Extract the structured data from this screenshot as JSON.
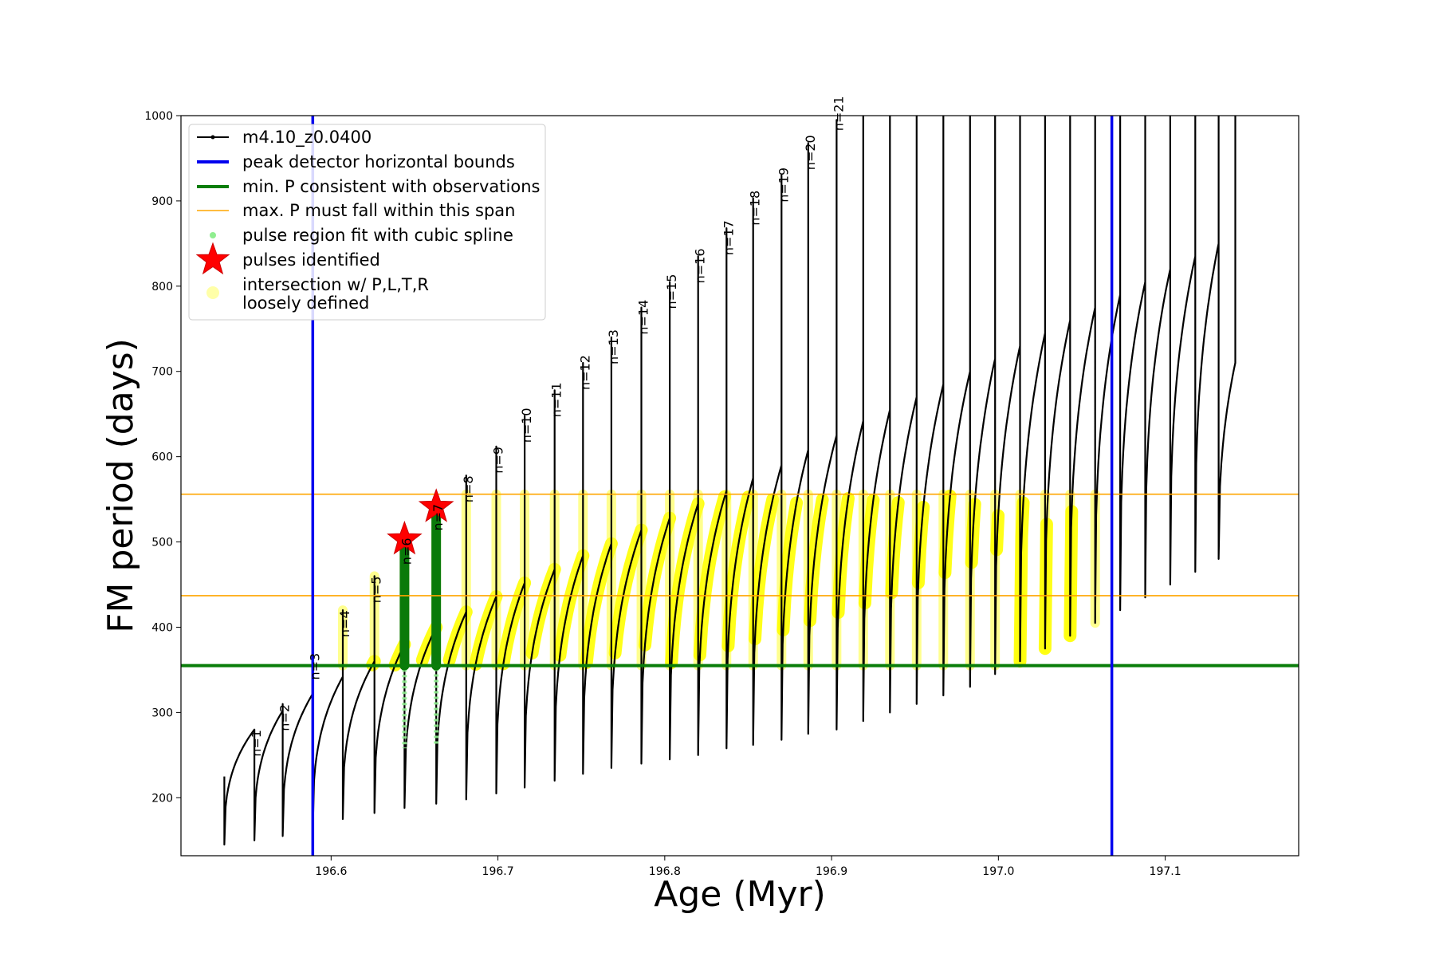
{
  "chart_data": {
    "type": "line",
    "xlabel": "Age (Myr)",
    "ylabel": "FM period (days)",
    "xlim": [
      196.51,
      197.18
    ],
    "ylim": [
      132,
      1000
    ],
    "x_ticks": [
      196.6,
      196.7,
      196.8,
      196.9,
      197.0,
      197.1
    ],
    "x_tick_labels": [
      "196.6",
      "196.7",
      "196.8",
      "196.9",
      "197.0",
      "197.1"
    ],
    "y_ticks": [
      200,
      300,
      400,
      500,
      600,
      700,
      800,
      900,
      1000
    ],
    "y_tick_labels": [
      "200",
      "300",
      "400",
      "500",
      "600",
      "700",
      "800",
      "900",
      "1000"
    ],
    "grid": false,
    "legend_position": "top-left",
    "legend": [
      {
        "label": "m4.10_z0.0400",
        "style": "black-line-marker"
      },
      {
        "label": "peak detector horizontal bounds",
        "style": "blue-line"
      },
      {
        "label": "min. P consistent with observations",
        "style": "green-line"
      },
      {
        "label": "max. P must fall within this span",
        "style": "orange-line"
      },
      {
        "label": "pulse region fit with cubic spline",
        "style": "lightgreen-dot"
      },
      {
        "label": "pulses identified",
        "style": "red-star"
      },
      {
        "label": "intersection w/ P,L,T,R",
        "label2": "loosely defined",
        "style": "yellow-dot"
      }
    ],
    "vertical_bounds": [
      196.589,
      197.068
    ],
    "min_period": 355,
    "max_period_span": [
      437,
      556
    ],
    "pulses": [
      {
        "label": "n=1",
        "age": 196.554,
        "peak": 280,
        "trough": 150,
        "top": 280
      },
      {
        "label": "n=2",
        "age": 196.571,
        "peak": 302,
        "trough": 155,
        "top": 310
      },
      {
        "label": "n=3",
        "age": 196.589,
        "peak": 322,
        "trough": 160,
        "top": 370
      },
      {
        "label": "n=4",
        "age": 196.607,
        "peak": 342,
        "trough": 175,
        "top": 420
      },
      {
        "label": "n=5",
        "age": 196.626,
        "peak": 360,
        "trough": 182,
        "top": 460
      },
      {
        "label": "n=6",
        "age": 196.644,
        "peak": 380,
        "trough": 188,
        "top": 505
      },
      {
        "label": "n=7",
        "age": 196.663,
        "peak": 400,
        "trough": 193,
        "top": 545
      },
      {
        "label": "n=8",
        "age": 196.681,
        "peak": 418,
        "trough": 198,
        "top": 578
      },
      {
        "label": "n=9",
        "age": 196.699,
        "peak": 436,
        "trough": 205,
        "top": 612
      },
      {
        "label": "n=10",
        "age": 196.716,
        "peak": 452,
        "trough": 212,
        "top": 648
      },
      {
        "label": "n=11",
        "age": 196.734,
        "peak": 468,
        "trough": 220,
        "top": 678
      },
      {
        "label": "n=12",
        "age": 196.751,
        "peak": 484,
        "trough": 228,
        "top": 710
      },
      {
        "label": "n=13",
        "age": 196.768,
        "peak": 498,
        "trough": 235,
        "top": 740
      },
      {
        "label": "n=14",
        "age": 196.786,
        "peak": 514,
        "trough": 240,
        "top": 775
      },
      {
        "label": "n=15",
        "age": 196.803,
        "peak": 528,
        "trough": 245,
        "top": 805
      },
      {
        "label": "n=16",
        "age": 196.82,
        "peak": 545,
        "trough": 250,
        "top": 835
      },
      {
        "label": "n=17",
        "age": 196.837,
        "peak": 560,
        "trough": 258,
        "top": 868
      },
      {
        "label": "n=18",
        "age": 196.853,
        "peak": 575,
        "trough": 262,
        "top": 903
      },
      {
        "label": "n=19",
        "age": 196.87,
        "peak": 590,
        "trough": 268,
        "top": 930
      },
      {
        "label": "n=20",
        "age": 196.886,
        "peak": 608,
        "trough": 275,
        "top": 968
      },
      {
        "label": "n=21",
        "age": 196.903,
        "peak": 625,
        "trough": 280,
        "top": 995
      },
      {
        "label": "",
        "age": 196.919,
        "peak": 642,
        "trough": 290,
        "top": 1000
      },
      {
        "label": "",
        "age": 196.935,
        "peak": 655,
        "trough": 300,
        "top": 1000
      },
      {
        "label": "",
        "age": 196.951,
        "peak": 670,
        "trough": 310,
        "top": 1000
      },
      {
        "label": "",
        "age": 196.967,
        "peak": 685,
        "trough": 320,
        "top": 1000
      },
      {
        "label": "",
        "age": 196.983,
        "peak": 700,
        "trough": 330,
        "top": 1000
      },
      {
        "label": "",
        "age": 196.998,
        "peak": 715,
        "trough": 345,
        "top": 1000
      },
      {
        "label": "",
        "age": 197.013,
        "peak": 730,
        "trough": 360,
        "top": 1000
      },
      {
        "label": "",
        "age": 197.028,
        "peak": 745,
        "trough": 375,
        "top": 1000
      },
      {
        "label": "",
        "age": 197.043,
        "peak": 760,
        "trough": 390,
        "top": 1000
      },
      {
        "label": "",
        "age": 197.058,
        "peak": 775,
        "trough": 405,
        "top": 1000
      },
      {
        "label": "",
        "age": 197.073,
        "peak": 790,
        "trough": 420,
        "top": 1000
      },
      {
        "label": "",
        "age": 197.088,
        "peak": 805,
        "trough": 435,
        "top": 1000
      },
      {
        "label": "",
        "age": 197.103,
        "peak": 820,
        "trough": 450,
        "top": 1000
      },
      {
        "label": "",
        "age": 197.118,
        "peak": 835,
        "trough": 465,
        "top": 1000
      },
      {
        "label": "",
        "age": 197.132,
        "peak": 850,
        "trough": 480,
        "top": 1000
      }
    ],
    "track_start_age": 196.536,
    "track_end_age": 197.142,
    "track_end_period": 710,
    "spline_pulses": [
      6,
      7
    ],
    "identified_pulses": [
      {
        "age": 196.644,
        "period": 503
      },
      {
        "age": 196.663,
        "period": 541
      }
    ]
  }
}
